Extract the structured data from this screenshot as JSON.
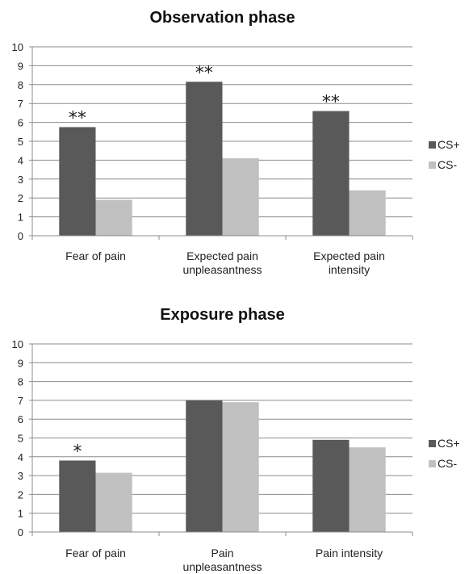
{
  "chart_data": [
    {
      "type": "bar",
      "title": "Observation phase",
      "categories": [
        [
          "Fear of pain"
        ],
        [
          "Expected pain",
          "unpleasantness"
        ],
        [
          "Expected pain",
          "intensity"
        ]
      ],
      "series": [
        {
          "name": "CS+",
          "values": [
            5.75,
            8.15,
            6.6
          ],
          "color": "#595959"
        },
        {
          "name": "CS-",
          "values": [
            1.9,
            4.1,
            2.4
          ],
          "color": "#c0c0c0"
        }
      ],
      "annotations": [
        "**",
        "**",
        "**"
      ],
      "ylim": [
        0,
        10
      ],
      "yticks": [
        "0",
        "1",
        "2",
        "3",
        "4",
        "5",
        "6",
        "7",
        "8",
        "9",
        "10"
      ],
      "grid": true,
      "legend": "right"
    },
    {
      "type": "bar",
      "title": "Exposure phase",
      "categories": [
        [
          "Fear of pain"
        ],
        [
          "Pain",
          "unpleasantness"
        ],
        [
          "Pain intensity"
        ]
      ],
      "series": [
        {
          "name": "CS+",
          "values": [
            3.8,
            7.0,
            4.9
          ],
          "color": "#595959"
        },
        {
          "name": "CS-",
          "values": [
            3.15,
            6.9,
            4.5
          ],
          "color": "#c0c0c0"
        }
      ],
      "annotations": [
        "*",
        "",
        ""
      ],
      "ylim": [
        0,
        10
      ],
      "yticks": [
        "0",
        "1",
        "2",
        "3",
        "4",
        "5",
        "6",
        "7",
        "8",
        "9",
        "10"
      ],
      "grid": true,
      "legend": "right"
    }
  ]
}
